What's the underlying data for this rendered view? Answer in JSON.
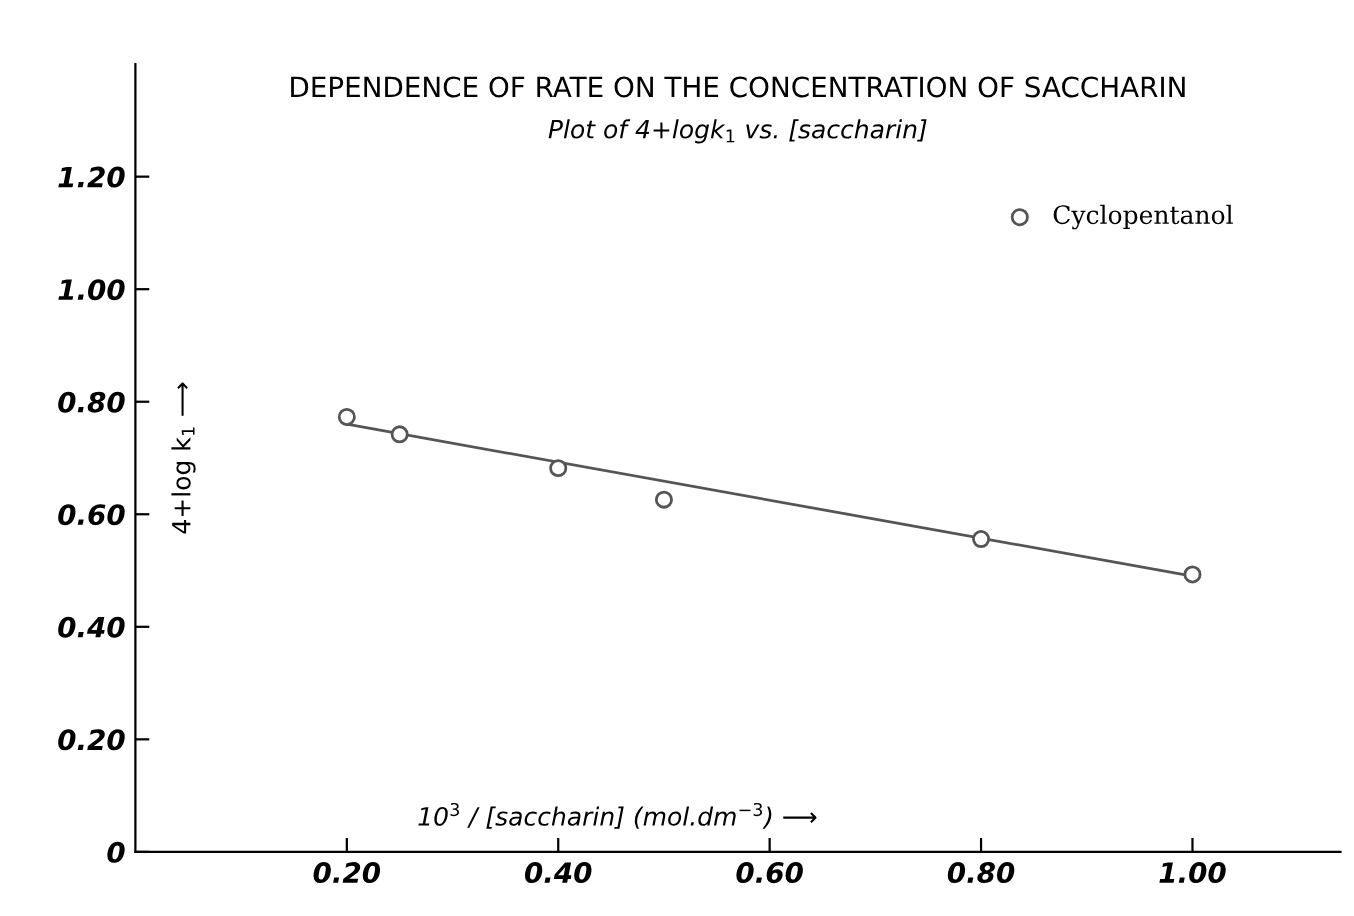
{
  "chart_data": {
    "type": "scatter",
    "title": "DEPENDENCE OF RATE ON THE CONCENTRATION OF SACCHARIN",
    "subtitle": "Plot of 4+logk$_{1}$ vs. [saccharin]",
    "xlabel": "10$^{3}$ / [saccharin] (mol.dm$^{−3}$) ⟶",
    "ylabel": "4+log k$_{1}$ ⟶",
    "series": [
      {
        "name": "Cyclopentanol",
        "color": "#555555",
        "marker": "circle",
        "x": [
          0.2,
          0.25,
          0.4,
          0.5,
          0.8,
          1.0
        ],
        "values": [
          0.773,
          0.742,
          0.682,
          0.626,
          0.556,
          0.493
        ]
      },
      {
        "type": "line",
        "color": "#555555",
        "x": [
          0.2,
          1.0
        ],
        "values": [
          0.76,
          0.49
        ]
      }
    ],
    "xlim": [
      0,
      1.14
    ],
    "ylim": [
      0,
      1.4
    ],
    "xticks": [
      {
        "value": 0.2,
        "label": "0.20"
      },
      {
        "value": 0.4,
        "label": "0.40"
      },
      {
        "value": 0.6,
        "label": "0.60"
      },
      {
        "value": 0.8,
        "label": "0.80"
      },
      {
        "value": 1.0,
        "label": "1.00"
      }
    ],
    "yticks": [
      0,
      {
        "value": 0.2,
        "label": "0.20"
      },
      {
        "value": 0.4,
        "label": "0.40"
      },
      {
        "value": 0.6,
        "label": "0.60"
      },
      {
        "value": 0.8,
        "label": "0.80"
      },
      {
        "value": 1.0,
        "label": "1.00"
      },
      {
        "value": 1.2,
        "label": "1.20"
      }
    ],
    "grid": false,
    "legend": "top right"
  }
}
